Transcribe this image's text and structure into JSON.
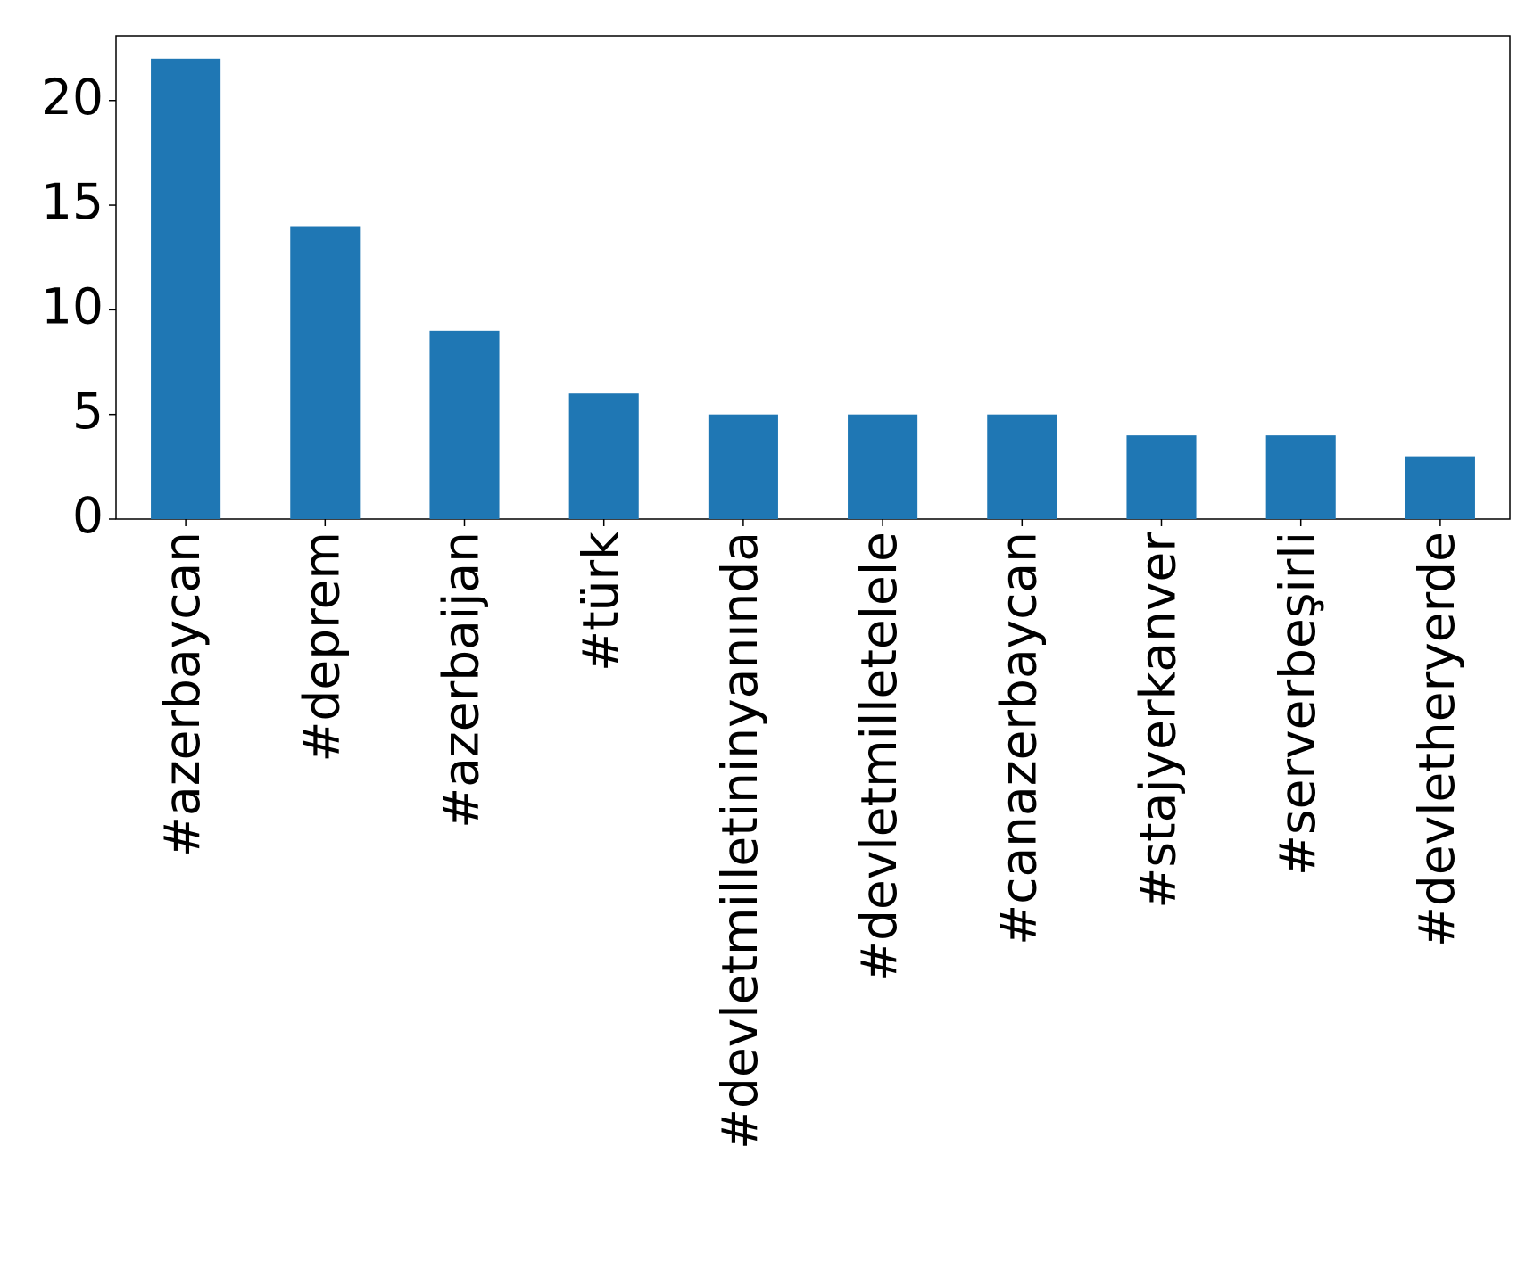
{
  "chart_data": {
    "type": "bar",
    "categories": [
      "#azerbaycan",
      "#deprem",
      "#azerbaijan",
      "#türk",
      "#devletmilletininyanında",
      "#devletmilletelele",
      "#canazerbaycan",
      "#stajyerkanver",
      "#serverbeşirli",
      "#devletheryerde"
    ],
    "values": [
      22,
      14,
      9,
      6,
      5,
      5,
      5,
      4,
      4,
      3
    ],
    "color": "#1f77b4",
    "ylim": [
      0,
      23.1
    ],
    "yticks": [
      0,
      5,
      10,
      15,
      20
    ],
    "grid": false
  }
}
